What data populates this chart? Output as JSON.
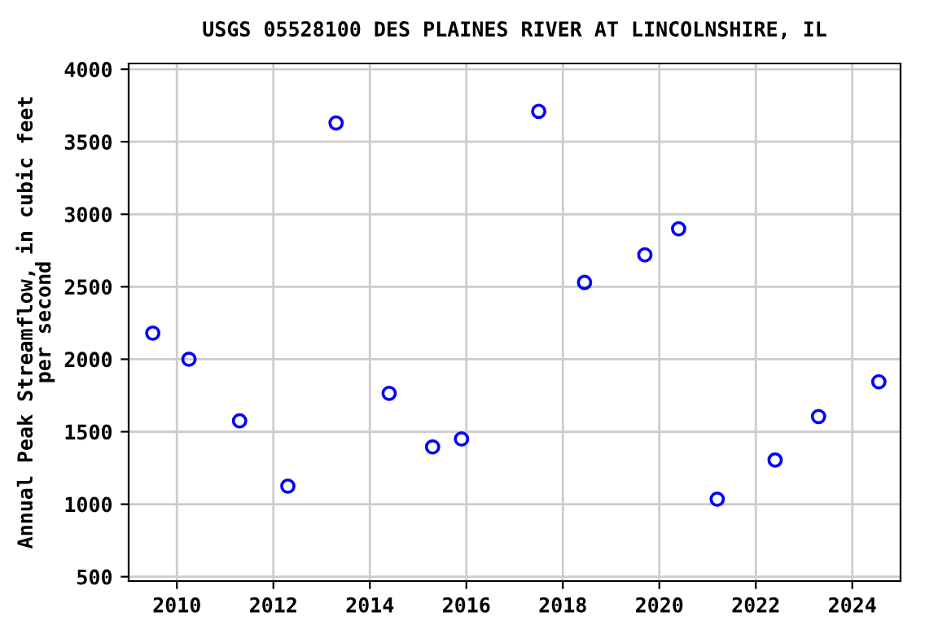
{
  "chart_data": {
    "type": "scatter",
    "title": "USGS 05528100 DES PLAINES RIVER AT LINCOLNSHIRE, IL",
    "ylabel": "Annual Peak Streamflow, in cubic feet\nper second",
    "x": [
      2009.5,
      2010.25,
      2011.3,
      2012.3,
      2013.3,
      2014.4,
      2015.3,
      2015.9,
      2017.5,
      2018.45,
      2019.7,
      2020.4,
      2021.2,
      2022.4,
      2023.3,
      2024.55
    ],
    "series": [
      {
        "color": "#0000ff",
        "values": [
          2180,
          2000,
          1575,
          1125,
          3630,
          1765,
          1395,
          1450,
          3710,
          2530,
          2720,
          2900,
          1035,
          1305,
          1605,
          1845
        ]
      }
    ],
    "xlim": [
      2009.0,
      2025.0
    ],
    "xticks": [
      2010,
      2012,
      2014,
      2016,
      2018,
      2020,
      2022,
      2024
    ],
    "ylim": [
      470,
      4040
    ],
    "yticks": [
      500,
      1000,
      1500,
      2000,
      2500,
      3000,
      3500,
      4000
    ],
    "grid": true,
    "marker": "circle"
  }
}
